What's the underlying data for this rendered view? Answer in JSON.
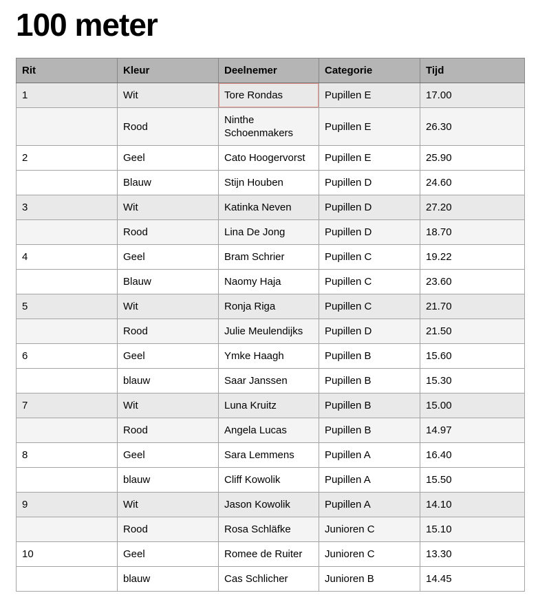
{
  "page": {
    "title": "100 meter"
  },
  "table": {
    "headers": [
      "Rit",
      "Kleur",
      "Deelnemer",
      "Categorie",
      "Tijd"
    ],
    "rows": [
      {
        "rit": "1",
        "kleur": "Wit",
        "deelnemer": "Tore Rondas",
        "categorie": "Pupillen E",
        "tijd": "17.00"
      },
      {
        "rit": "",
        "kleur": "Rood",
        "deelnemer": "Ninthe Schoenmakers",
        "categorie": "Pupillen E",
        "tijd": "26.30"
      },
      {
        "rit": "2",
        "kleur": "Geel",
        "deelnemer": "Cato Hoogervorst",
        "categorie": "Pupillen E",
        "tijd": "25.90"
      },
      {
        "rit": "",
        "kleur": "Blauw",
        "deelnemer": "Stijn Houben",
        "categorie": "Pupillen D",
        "tijd": "24.60"
      },
      {
        "rit": "3",
        "kleur": "Wit",
        "deelnemer": "Katinka Neven",
        "categorie": "Pupillen D",
        "tijd": "27.20"
      },
      {
        "rit": "",
        "kleur": "Rood",
        "deelnemer": "Lina De Jong",
        "categorie": "Pupillen D",
        "tijd": "18.70"
      },
      {
        "rit": "4",
        "kleur": "Geel",
        "deelnemer": "Bram Schrier",
        "categorie": "Pupillen C",
        "tijd": "19.22"
      },
      {
        "rit": "",
        "kleur": "Blauw",
        "deelnemer": "Naomy Haja",
        "categorie": "Pupillen C",
        "tijd": "23.60"
      },
      {
        "rit": "5",
        "kleur": "Wit",
        "deelnemer": "Ronja Riga",
        "categorie": "Pupillen C",
        "tijd": "21.70"
      },
      {
        "rit": "",
        "kleur": "Rood",
        "deelnemer": "Julie Meulendijks",
        "categorie": "Pupillen D",
        "tijd": "21.50"
      },
      {
        "rit": "6",
        "kleur": "Geel",
        "deelnemer": "Ymke Haagh",
        "categorie": "Pupillen B",
        "tijd": "15.60"
      },
      {
        "rit": "",
        "kleur": "blauw",
        "deelnemer": "Saar Janssen",
        "categorie": "Pupillen B",
        "tijd": "15.30"
      },
      {
        "rit": "7",
        "kleur": "Wit",
        "deelnemer": "Luna Kruitz",
        "categorie": "Pupillen B",
        "tijd": "15.00"
      },
      {
        "rit": "",
        "kleur": "Rood",
        "deelnemer": "Angela Lucas",
        "categorie": "Pupillen B",
        "tijd": "14.97"
      },
      {
        "rit": "8",
        "kleur": "Geel",
        "deelnemer": "Sara Lemmens",
        "categorie": "Pupillen A",
        "tijd": "16.40"
      },
      {
        "rit": "",
        "kleur": "blauw",
        "deelnemer": "Cliff Kowolik",
        "categorie": "Pupillen A",
        "tijd": "15.50"
      },
      {
        "rit": "9",
        "kleur": "Wit",
        "deelnemer": "Jason Kowolik",
        "categorie": "Pupillen A",
        "tijd": "14.10"
      },
      {
        "rit": "",
        "kleur": "Rood",
        "deelnemer": "Rosa Schläfke",
        "categorie": "Junioren C",
        "tijd": "15.10"
      },
      {
        "rit": "10",
        "kleur": "Geel",
        "deelnemer": "Romee de Ruiter",
        "categorie": "Junioren C",
        "tijd": "13.30"
      },
      {
        "rit": "",
        "kleur": "blauw",
        "deelnemer": "Cas Schlicher",
        "categorie": "Junioren B",
        "tijd": "14.45"
      }
    ],
    "selected_cell": {
      "row_index": 0,
      "column": "deelnemer"
    }
  },
  "colors": {
    "header_bg": "#b5b5b5",
    "row_shade_dark": "#e9e9e9",
    "row_shade_light": "#f4f4f4",
    "row_white": "#ffffff",
    "cell_border": "#a3a3a3",
    "header_border": "#868686",
    "selected_cell_border": "#e89a92",
    "text": "#000000"
  }
}
